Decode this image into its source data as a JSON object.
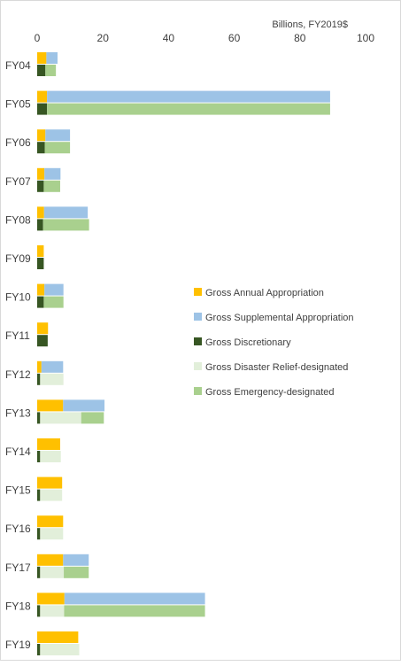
{
  "chart_data": {
    "type": "bar",
    "orientation": "horizontal",
    "units_label": "Billions, FY2019$",
    "xlim": [
      0,
      100
    ],
    "xticks": [
      0,
      20,
      40,
      60,
      80,
      100
    ],
    "grid": false,
    "legend_position": "right",
    "categories": [
      "FY04",
      "FY05",
      "FY06",
      "FY07",
      "FY08",
      "FY09",
      "FY10",
      "FY11",
      "FY12",
      "FY13",
      "FY14",
      "FY15",
      "FY16",
      "FY17",
      "FY18",
      "FY19"
    ],
    "top_bar": {
      "stack": [
        "Gross Annual Appropriation",
        "Gross Supplemental Appropriation"
      ],
      "values": {
        "Gross Annual Appropriation": [
          2.8,
          3.0,
          2.5,
          2.2,
          2.1,
          2.0,
          2.2,
          3.3,
          1.3,
          7.9,
          7.0,
          7.6,
          7.9,
          7.9,
          8.3,
          12.5
        ],
        "Gross Supplemental Appropriation": [
          3.4,
          86.2,
          7.5,
          4.9,
          13.3,
          0,
          5.8,
          0,
          6.6,
          12.6,
          0,
          0,
          0,
          7.8,
          42.8,
          0
        ]
      }
    },
    "bottom_bar": {
      "stack": [
        "Gross Discretionary",
        "Gross Disaster Relief-designated",
        "Gross Emergency-designated"
      ],
      "values": {
        "Gross Discretionary": [
          2.5,
          3.0,
          2.3,
          2.0,
          1.8,
          2.0,
          2.0,
          3.2,
          0.9,
          0.9,
          0.9,
          0.9,
          0.9,
          0.9,
          0.9,
          0.9
        ],
        "Gross Disaster Relief-designated": [
          0,
          0,
          0,
          0,
          0,
          0,
          0,
          0,
          7.1,
          12.5,
          6.3,
          6.7,
          7.0,
          7.2,
          7.3,
          11.9
        ],
        "Gross Emergency-designated": [
          3.2,
          86.2,
          7.7,
          5.0,
          14.0,
          0,
          6.0,
          0,
          0,
          6.9,
          0,
          0,
          0,
          7.6,
          42.9,
          0
        ]
      }
    },
    "series": [
      {
        "name": "Gross Annual Appropriation",
        "color": "#FFC000"
      },
      {
        "name": "Gross Supplemental Appropriation",
        "color": "#9DC3E6"
      },
      {
        "name": "Gross Discretionary",
        "color": "#375623"
      },
      {
        "name": "Gross Disaster Relief-designated",
        "color": "#E2EFDA"
      },
      {
        "name": "Gross Emergency-designated",
        "color": "#A9D08E"
      }
    ]
  }
}
